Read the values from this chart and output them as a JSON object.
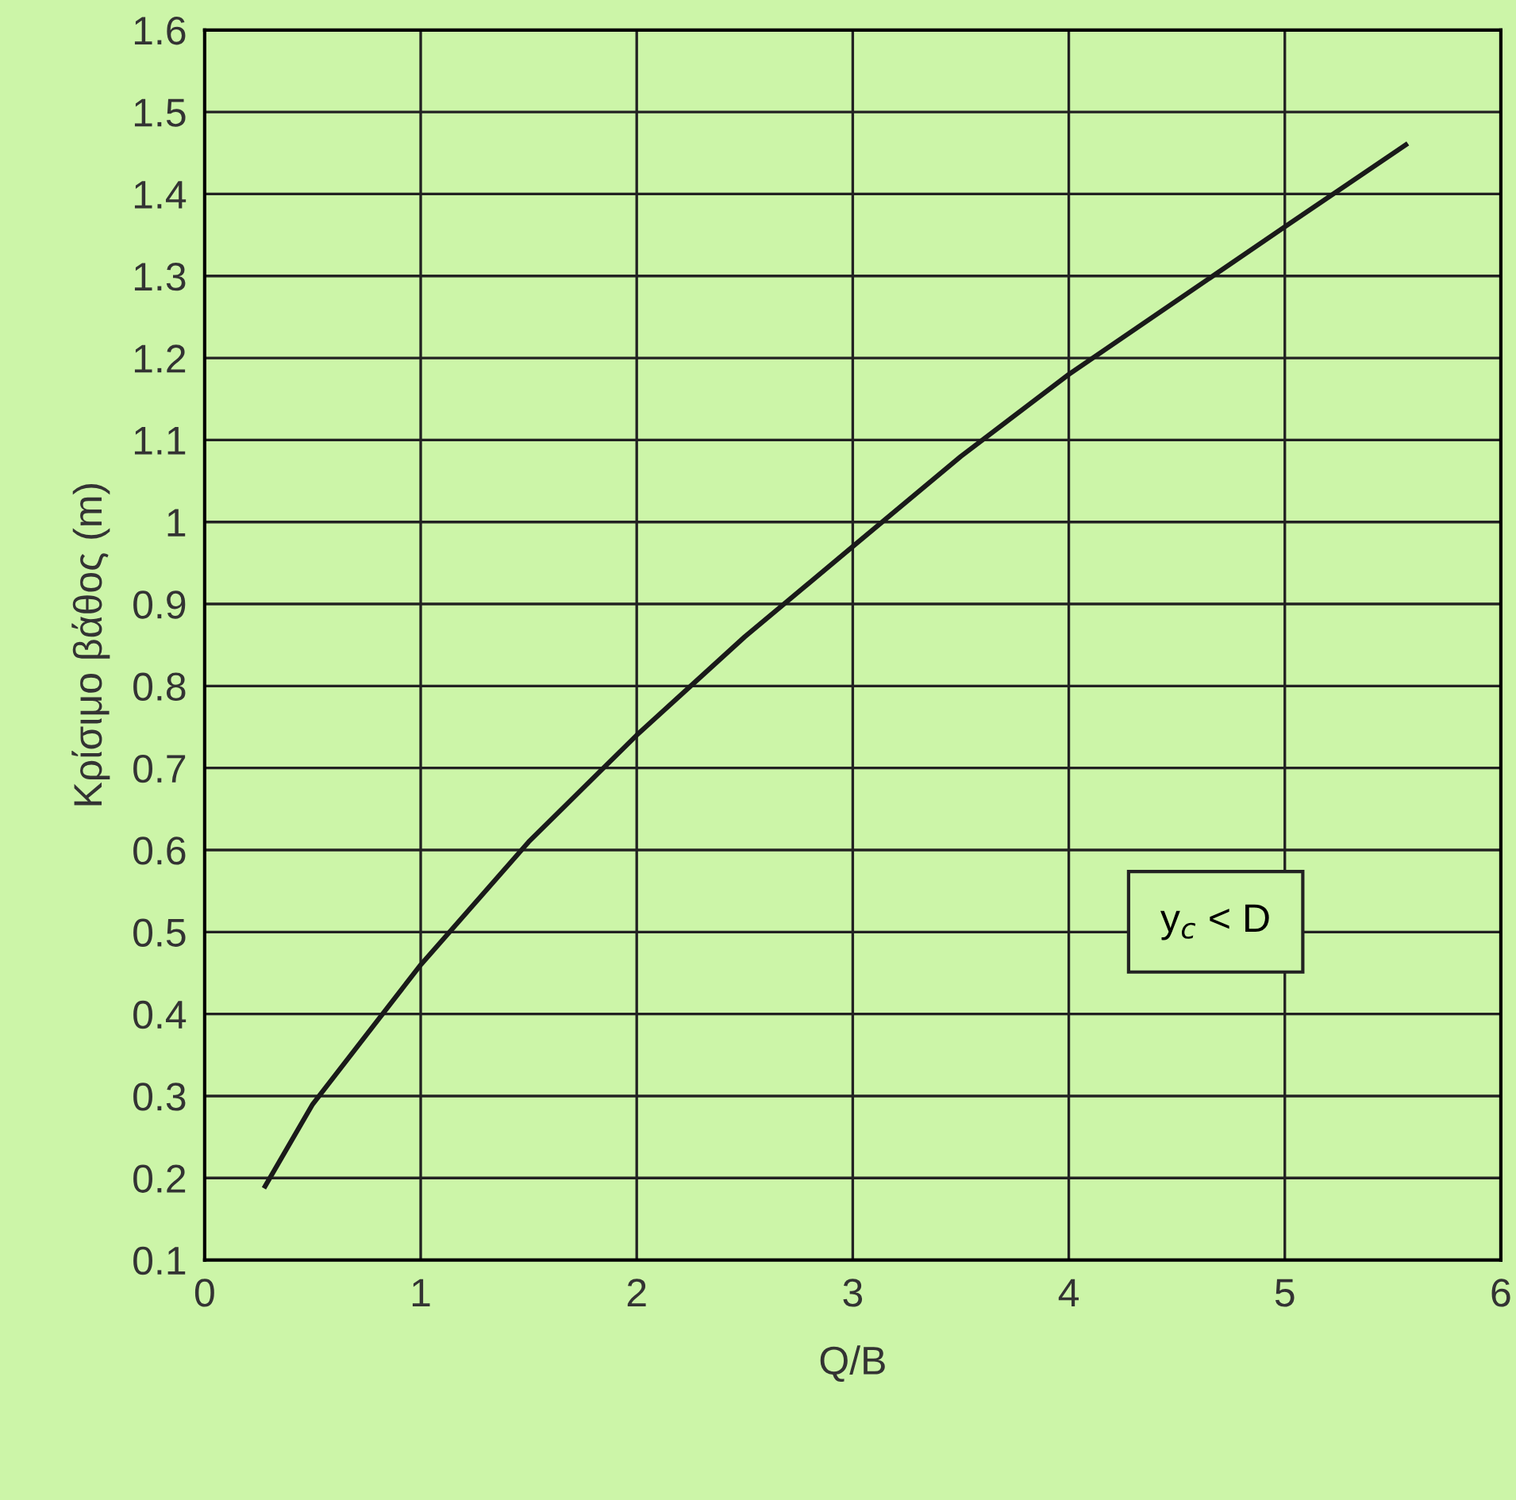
{
  "chart_data": {
    "type": "line",
    "xlabel": "Q/B",
    "ylabel": "Κρίσιμο βάθος (m)",
    "x": [
      0.28,
      0.5,
      1,
      1.5,
      2,
      2.5,
      3,
      3.5,
      4,
      4.5,
      5,
      5.56
    ],
    "series": [
      {
        "color": "#1a1a1a",
        "values": [
          0.19,
          0.29,
          0.46,
          0.61,
          0.74,
          0.86,
          0.97,
          1.08,
          1.18,
          1.27,
          1.36,
          1.46
        ]
      }
    ],
    "xlim": [
      0,
      6
    ],
    "xticks": [
      0,
      1,
      2,
      3,
      4,
      5,
      6
    ],
    "ylim": [
      0.1,
      1.6
    ],
    "yticks": [
      0.1,
      0.2,
      0.3,
      0.4,
      0.5,
      0.6,
      0.7,
      0.8,
      0.9,
      1,
      1.1,
      1.2,
      1.3,
      1.4,
      1.5,
      1.6
    ],
    "grid": true,
    "marker": "none",
    "line_style": "solid",
    "annotations": [
      "y$_{c}$ < D"
    ]
  }
}
